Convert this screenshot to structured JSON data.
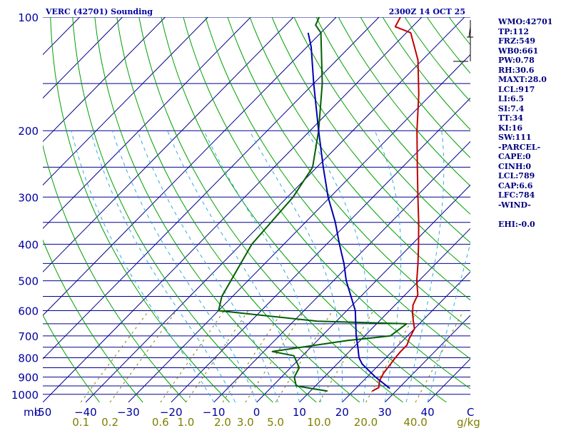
{
  "chart_data": {
    "type": "line",
    "title": "VERC (42701) Sounding",
    "valid_time": "2300Z 14 OCT 25",
    "xlabel": "C",
    "mixing_ratio_unit": "g/kg",
    "pressure_unit": "mb",
    "pressure_labels": [
      100,
      200,
      300,
      400,
      500,
      600,
      700,
      800,
      900,
      1000
    ],
    "isobars_mb": [
      100,
      150,
      200,
      250,
      300,
      350,
      400,
      450,
      500,
      550,
      600,
      650,
      700,
      750,
      800,
      850,
      900,
      950,
      1000
    ],
    "temperature_ticks": [
      -50,
      -40,
      -30,
      -20,
      -10,
      0,
      10,
      20,
      30,
      40
    ],
    "temperature_tick_labels": [
      "-50",
      "−40",
      "−30",
      "−20",
      "−10",
      "0",
      "10",
      "20",
      "30",
      "40"
    ],
    "xlim": [
      -50,
      50
    ],
    "plim": [
      1050,
      100
    ],
    "skew_c_per_decade": 86.8,
    "mixing_ratio_labels": [
      "0.1",
      "0.2",
      "0.6",
      "1.0",
      "2.0",
      "3.0",
      "5.0",
      "10.0",
      "20.0",
      "40.0"
    ],
    "mixing_ratio_values": [
      0.1,
      0.2,
      0.6,
      1.0,
      2.0,
      3.0,
      5.0,
      10.0,
      20.0,
      40.0
    ],
    "series": [
      {
        "name": "Temperature",
        "color": "#c00000",
        "points": [
          [
            980,
            24.5
          ],
          [
            970,
            24.8
          ],
          [
            960,
            25.2
          ],
          [
            940,
            24.5
          ],
          [
            920,
            23.8
          ],
          [
            880,
            23.0
          ],
          [
            840,
            22.6
          ],
          [
            800,
            22.2
          ],
          [
            770,
            22.0
          ],
          [
            740,
            22.0
          ],
          [
            710,
            21.0
          ],
          [
            690,
            20.5
          ],
          [
            670,
            20.0
          ],
          [
            640,
            18.0
          ],
          [
            610,
            16.0
          ],
          [
            580,
            14.2
          ],
          [
            560,
            13.5
          ],
          [
            545,
            13.0
          ],
          [
            500,
            9.5
          ],
          [
            450,
            5.8
          ],
          [
            400,
            1.5
          ],
          [
            350,
            -3.5
          ],
          [
            300,
            -9.5
          ],
          [
            250,
            -16.5
          ],
          [
            200,
            -25.0
          ],
          [
            160,
            -33.0
          ],
          [
            130,
            -41.0
          ],
          [
            110,
            -49.0
          ],
          [
            106,
            -54.0
          ],
          [
            100,
            -55.0
          ]
        ]
      },
      {
        "name": "Dewpoint",
        "color": "#006000",
        "points": [
          [
            980,
            14.0
          ],
          [
            970,
            11.0
          ],
          [
            950,
            5.5
          ],
          [
            900,
            3.0
          ],
          [
            850,
            2.0
          ],
          [
            790,
            -2.0
          ],
          [
            770,
            -8.0
          ],
          [
            720,
            7.0
          ],
          [
            700,
            16.0
          ],
          [
            650,
            17.0
          ],
          [
            640,
            -4.5
          ],
          [
            600,
            -30.0
          ],
          [
            550,
            -32.5
          ],
          [
            400,
            -37.5
          ],
          [
            300,
            -38.7
          ],
          [
            250,
            -41.0
          ],
          [
            200,
            -48.0
          ],
          [
            150,
            -58.0
          ],
          [
            110,
            -70.0
          ],
          [
            105,
            -73.0
          ],
          [
            100,
            -74.0
          ]
        ]
      },
      {
        "name": "Parcel path",
        "color": "#0000b0",
        "points": [
          [
            965,
            28.0
          ],
          [
            900,
            22.0
          ],
          [
            860,
            18.5
          ],
          [
            830,
            15.8
          ],
          [
            800,
            13.7
          ],
          [
            750,
            11.0
          ],
          [
            700,
            8.0
          ],
          [
            600,
            2.0
          ],
          [
            500,
            -7.0
          ],
          [
            450,
            -11.5
          ],
          [
            400,
            -17.0
          ],
          [
            350,
            -23.0
          ],
          [
            300,
            -30.5
          ],
          [
            250,
            -38.5
          ],
          [
            200,
            -48.0
          ],
          [
            150,
            -60.0
          ],
          [
            120,
            -69.0
          ],
          [
            110,
            -73.0
          ]
        ]
      }
    ]
  },
  "stats": [
    "WMO:42701",
    "TP:112",
    "FRZ:549",
    "WB0:661",
    "PW:0.78",
    "RH:30.6",
    "MAXT:28.0",
    "LCL:917",
    "LI:6.5",
    "SI:7.4",
    "TT:34",
    "KI:16",
    "SW:111",
    "-PARCEL-",
    "CAPE:0",
    "CINH:0",
    "LCL:789",
    "CAP:6.6",
    "LFC:784",
    "-WIND-",
    "",
    "EHI:-0.0"
  ],
  "colors": {
    "isobar": "#000090",
    "isotherm": "#000090",
    "dry_adiabat": "#00a000",
    "moist_adiabat": "#33aadd",
    "mixing_ratio": "#7f7f00",
    "label_blue": "#0000a0",
    "label_olive": "#7f7f00"
  }
}
